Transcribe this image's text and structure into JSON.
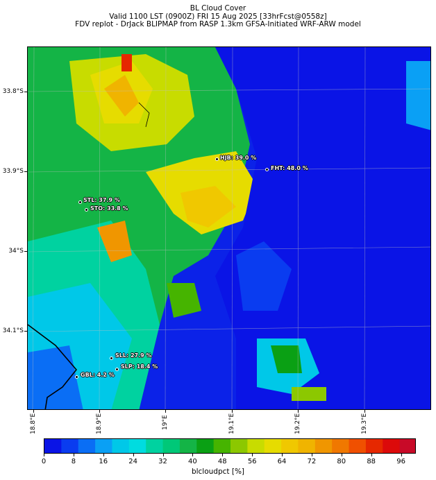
{
  "title": {
    "line1": "BL Cloud Cover",
    "line2": "Valid 1100 LST (0900Z) FRI 15 Aug 2025 [33hrFcst@0558z]",
    "line3": "FDV replot - DrJack BLIPMAP from RASP 1.3km GFSA-Initiated WRF-ARW model"
  },
  "map": {
    "lon_range": [
      18.77,
      19.39
    ],
    "lat_range": [
      34.21,
      33.755
    ],
    "lat_ticks": [
      "33.8°S",
      "33.9°S",
      "34°S",
      "34.1°S"
    ],
    "lat_values": [
      33.8,
      33.9,
      34.0,
      34.1
    ],
    "lon_ticks": [
      "18.8°E",
      "18.9°E",
      "19°E",
      "19.1°E",
      "19.2°E",
      "19.3°E"
    ],
    "lon_values": [
      18.8,
      18.9,
      19.0,
      19.1,
      19.2,
      19.3
    ],
    "sites": [
      {
        "label": "HJB: 39.0 %",
        "code": "HJB",
        "value": 39.0
      },
      {
        "label": "FHT: 48.0 %",
        "code": "FHT",
        "value": 48.0
      },
      {
        "label": "STL: 37.9 %",
        "code": "STL",
        "value": 37.9
      },
      {
        "label": "STO: 33.8 %",
        "code": "STO",
        "value": 33.8
      },
      {
        "label": "SLL: 27.9 %",
        "code": "SLL",
        "value": 27.9
      },
      {
        "label": "SLP: 18.4 %",
        "code": "SLP",
        "value": 18.4
      },
      {
        "label": "GBL: 4.2 %",
        "code": "GBL",
        "value": 4.2
      }
    ]
  },
  "colorbar": {
    "title": "blcloudpct [%]",
    "range": [
      0,
      100
    ],
    "tick_labels": [
      "0",
      "8",
      "16",
      "24",
      "32",
      "40",
      "48",
      "56",
      "64",
      "72",
      "80",
      "88",
      "96"
    ],
    "colors": [
      "#0a14e6",
      "#0a3cf0",
      "#0a6ef5",
      "#0aa0f5",
      "#00c8e8",
      "#00dce0",
      "#00d2a0",
      "#00c878",
      "#14b446",
      "#0aa014",
      "#46b400",
      "#8cc800",
      "#c8dc00",
      "#e6dc00",
      "#f0c800",
      "#f0b400",
      "#f09600",
      "#f07800",
      "#f05000",
      "#e62800",
      "#dc0a0a",
      "#c80a28"
    ]
  }
}
